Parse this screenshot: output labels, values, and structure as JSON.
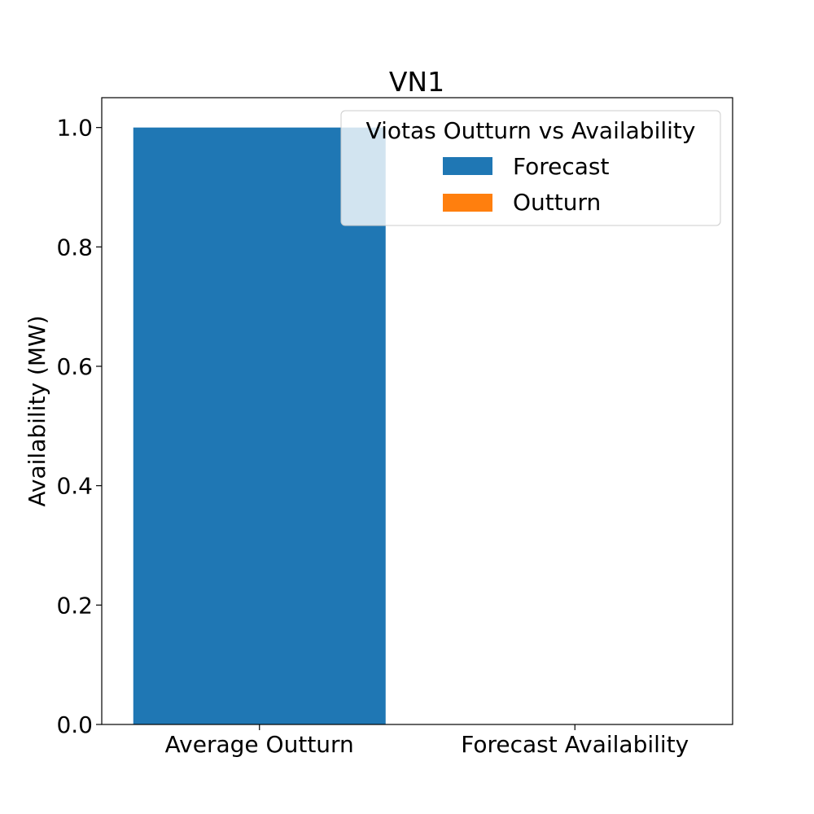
{
  "chart_data": {
    "type": "bar",
    "title": "VN1",
    "xlabel": "",
    "ylabel": "Availability (MW)",
    "categories": [
      "Average Outturn",
      "Forecast Availability"
    ],
    "series": [
      {
        "name": "Forecast",
        "color": "#1f77b4",
        "values": [
          1.0,
          0.0
        ]
      },
      {
        "name": "Outturn",
        "color": "#ff7f0e",
        "values": [
          0.0,
          0.0
        ]
      }
    ],
    "ylim": [
      0,
      1.05
    ],
    "yticks": [
      0.0,
      0.2,
      0.4,
      0.6,
      0.8,
      1.0
    ],
    "ytick_labels": [
      "0.0",
      "0.2",
      "0.4",
      "0.6",
      "0.8",
      "1.0"
    ],
    "legend": {
      "title": "Viotas Outturn vs Availability",
      "placement": "top-right"
    },
    "grid": false
  }
}
